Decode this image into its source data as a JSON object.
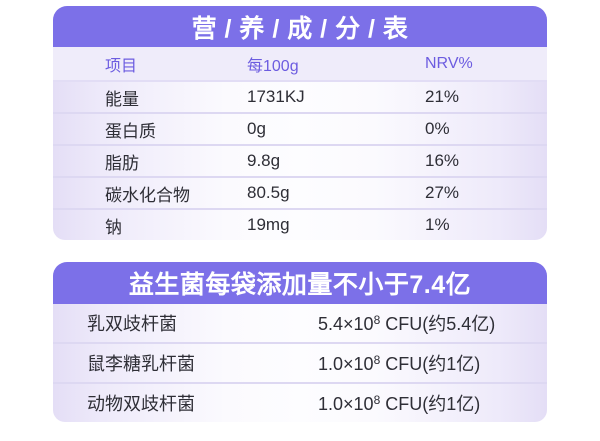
{
  "colors": {
    "header_purple": "#7c70e8",
    "title_text": "#ffffff",
    "column_header_text": "#6c5ce0",
    "body_text": "#2e2e36",
    "header_row_bg": "#efecfa",
    "row_edge_lavender": "#e4def6",
    "divider": "#ddd8f2",
    "page_bg": "#ffffff"
  },
  "nutrition_table": {
    "title": "营 / 养 / 成 / 分 / 表",
    "columns": [
      "项目",
      "每100g",
      "NRV%"
    ],
    "rows": [
      {
        "item": "能量",
        "per_100g": "1731KJ",
        "nrv": "21%"
      },
      {
        "item": "蛋白质",
        "per_100g": "0g",
        "nrv": "0%"
      },
      {
        "item": "脂肪",
        "per_100g": "9.8g",
        "nrv": "16%"
      },
      {
        "item": "碳水化合物",
        "per_100g": "80.5g",
        "nrv": "27%"
      },
      {
        "item": "钠",
        "per_100g": "19mg",
        "nrv": "1%"
      }
    ]
  },
  "probiotics_table": {
    "title": "益生菌每袋添加量不小于7.4亿",
    "rows": [
      {
        "name": "乳双歧杆菌",
        "amount_base": "5.4×10",
        "amount_exp": "8",
        "amount_rest": " CFU(约5.4亿)"
      },
      {
        "name": "鼠李糖乳杆菌",
        "amount_base": "1.0×10",
        "amount_exp": "8",
        "amount_rest": " CFU(约1亿)"
      },
      {
        "name": "动物双歧杆菌",
        "amount_base": "1.0×10",
        "amount_exp": "8",
        "amount_rest": " CFU(约1亿)"
      }
    ]
  }
}
